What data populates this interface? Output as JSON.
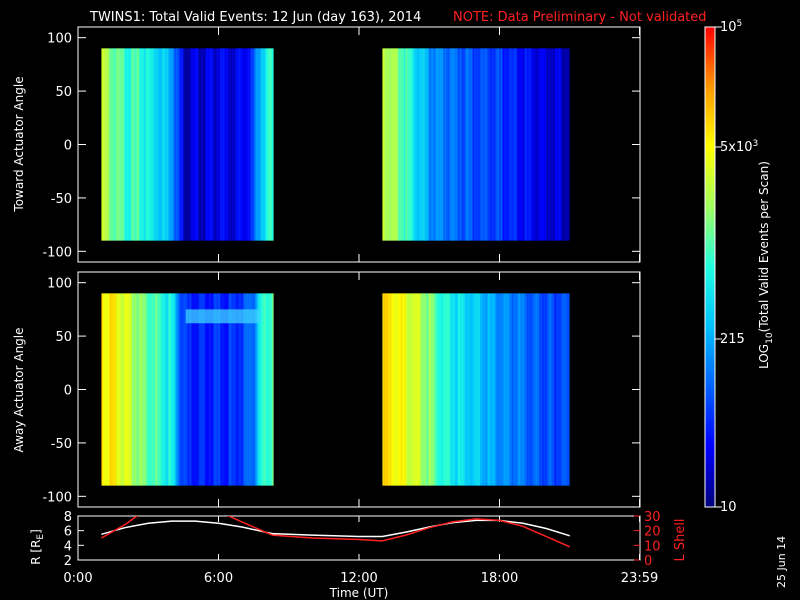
{
  "header": {
    "title": "TWINS1: Total Valid Events: 12 Jun (day 163), 2014",
    "note": "NOTE: Data Preliminary - Not validated"
  },
  "chart_data": [
    {
      "type": "heatmap",
      "ylabel": "Toward Actuator Angle",
      "ylim": [
        -110,
        110
      ],
      "yticks": [
        100,
        50,
        0,
        -50,
        -100
      ],
      "xlim_hours": [
        0,
        24
      ],
      "data_extent": {
        "angle_range": [
          -90,
          90
        ]
      },
      "segments": [
        {
          "start": "01:00",
          "end": "08:20",
          "profile_hours": [
            1.0,
            1.5,
            2.0,
            2.5,
            3.0,
            3.5,
            4.0,
            4.3,
            4.6,
            5.0,
            5.5,
            6.0,
            6.5,
            7.0,
            7.4,
            7.8,
            8.3
          ],
          "profile_levels": [
            0.7,
            0.6,
            0.55,
            0.55,
            0.5,
            0.45,
            0.4,
            0.2,
            0.1,
            0.12,
            0.12,
            0.15,
            0.12,
            0.15,
            0.2,
            0.45,
            0.55
          ]
        },
        {
          "start": "13:00",
          "end": "21:00",
          "profile_hours": [
            13.0,
            13.5,
            14.0,
            14.5,
            15.0,
            15.5,
            16.0,
            16.5,
            17.0,
            17.5,
            18.0,
            18.5,
            19.0,
            19.5,
            20.0,
            20.5,
            21.0
          ],
          "profile_levels": [
            0.72,
            0.65,
            0.55,
            0.45,
            0.35,
            0.32,
            0.3,
            0.28,
            0.25,
            0.25,
            0.22,
            0.2,
            0.18,
            0.15,
            0.12,
            0.12,
            0.1
          ]
        }
      ]
    },
    {
      "type": "heatmap",
      "ylabel": "Away Actuator Angle",
      "ylim": [
        -110,
        110
      ],
      "yticks": [
        100,
        50,
        0,
        -50,
        -100
      ],
      "xlim_hours": [
        0,
        24
      ],
      "data_extent": {
        "angle_range": [
          -90,
          90
        ]
      },
      "segments": [
        {
          "start": "01:00",
          "end": "08:20",
          "profile_hours": [
            1.0,
            1.5,
            2.0,
            2.5,
            3.0,
            3.5,
            4.0,
            4.3,
            4.6,
            5.0,
            5.5,
            6.0,
            6.5,
            7.0,
            7.4,
            7.8,
            8.3
          ],
          "profile_levels": [
            0.82,
            0.78,
            0.72,
            0.65,
            0.6,
            0.55,
            0.48,
            0.3,
            0.18,
            0.2,
            0.2,
            0.22,
            0.2,
            0.25,
            0.3,
            0.5,
            0.6
          ]
        },
        {
          "start": "13:00",
          "end": "21:00",
          "profile_hours": [
            13.0,
            13.5,
            14.0,
            14.5,
            15.0,
            15.5,
            16.0,
            16.5,
            17.0,
            17.5,
            18.0,
            18.5,
            19.0,
            19.5,
            20.0,
            20.5,
            21.0
          ],
          "profile_levels": [
            0.82,
            0.8,
            0.75,
            0.7,
            0.62,
            0.55,
            0.5,
            0.45,
            0.42,
            0.38,
            0.35,
            0.32,
            0.3,
            0.28,
            0.26,
            0.25,
            0.24
          ]
        }
      ]
    },
    {
      "type": "line",
      "ylabel": "R [RE]",
      "y2label": "L Shell",
      "ylim": [
        2,
        8
      ],
      "yticks": [
        2,
        4,
        6,
        8
      ],
      "y2lim": [
        0,
        30
      ],
      "y2ticks": [
        0,
        10,
        20,
        30
      ],
      "xlabel": "Time (UT)",
      "xticks": [
        "0:00",
        "6:00",
        "12:00",
        "18:00",
        "23:59"
      ],
      "xtick_hours": [
        0,
        6,
        12,
        18,
        23.98
      ],
      "series": [
        {
          "axis": "left",
          "color": "#ffffff",
          "x": [
            1.0,
            2.0,
            3.0,
            4.0,
            5.0,
            6.0,
            7.0,
            8.3,
            10.0,
            12.0,
            13.0,
            14.0,
            15.0,
            16.0,
            17.0,
            18.0,
            19.0,
            20.0,
            21.0
          ],
          "y": [
            5.5,
            6.4,
            7.0,
            7.3,
            7.3,
            7.0,
            6.5,
            5.6,
            5.4,
            5.2,
            5.2,
            5.8,
            6.5,
            7.1,
            7.4,
            7.4,
            7.0,
            6.3,
            5.3
          ]
        },
        {
          "axis": "right",
          "color": "#ff2020",
          "x": [
            1.0,
            2.0,
            2.6,
            6.3,
            7.0,
            8.3,
            10.0,
            12.0,
            13.0,
            14.0,
            15.0,
            16.0,
            17.0,
            18.0,
            19.0,
            20.0,
            21.0
          ],
          "y": [
            15,
            24,
            31,
            31,
            26,
            17,
            15,
            14,
            13,
            17,
            22,
            26,
            28,
            27,
            23,
            16,
            9
          ]
        }
      ]
    }
  ],
  "colorbar": {
    "label": "LOG10(Total Valid Events per Scan)",
    "labels": [
      {
        "text": "10",
        "level": 0.0
      },
      {
        "text": "215",
        "level": 0.35
      },
      {
        "text": "5x103",
        "level": 0.75
      },
      {
        "text": "105",
        "level": 1.0
      }
    ],
    "colors": [
      "#00007a",
      "#0000ff",
      "#0060ff",
      "#00c0ff",
      "#20ffe0",
      "#a0ff60",
      "#ffff00",
      "#ff9900",
      "#ff0000"
    ]
  },
  "footer": {
    "date": "25 Jun 14"
  }
}
